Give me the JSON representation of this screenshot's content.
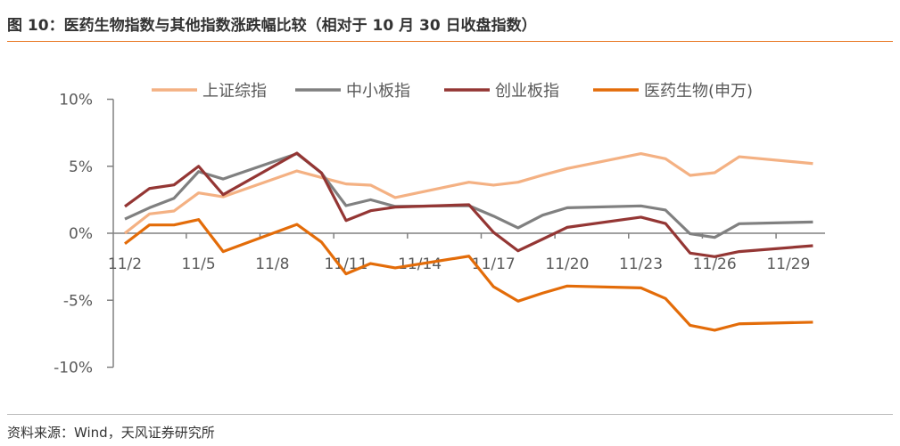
{
  "title": "图 10：医药生物指数与其他指数涨跌幅比较（相对于 10 月 30 日收盘指数）",
  "source": "资料来源：Wind，天风证券研究所",
  "chart_data": {
    "type": "line",
    "title": "医药生物指数与其他指数涨跌幅比较（相对于 10 月 30 日收盘指数）",
    "xlabel": "",
    "ylabel": "",
    "ylim": [
      -10,
      10
    ],
    "yticks": [
      10,
      5,
      0,
      -5,
      -10
    ],
    "ytick_labels": [
      "10%",
      "5%",
      "0%",
      "-5%",
      "-10%"
    ],
    "xtick_labels": [
      "11/2",
      "11/5",
      "11/8",
      "11/11",
      "11/14",
      "11/17",
      "11/20",
      "11/23",
      "11/26",
      "11/29"
    ],
    "xtick_days": [
      2,
      5,
      8,
      11,
      14,
      17,
      20,
      23,
      26,
      29
    ],
    "x_days": [
      2,
      3,
      4,
      5,
      6,
      9,
      10,
      11,
      12,
      13,
      16,
      17,
      18,
      19,
      20,
      23,
      24,
      25,
      26,
      27,
      30
    ],
    "legend_position": "top",
    "grid": false,
    "series": [
      {
        "name": "上证综指",
        "color": "#f4b183",
        "values": [
          0,
          1.44,
          1.66,
          3.01,
          2.72,
          4.65,
          4.16,
          3.68,
          3.59,
          2.66,
          3.81,
          3.59,
          3.81,
          4.34,
          4.83,
          5.94,
          5.56,
          4.32,
          4.52,
          5.71,
          5.2
        ]
      },
      {
        "name": "中小板指",
        "color": "#808080",
        "values": [
          1.06,
          1.9,
          2.61,
          4.6,
          4.05,
          5.94,
          4.5,
          2.06,
          2.5,
          2.0,
          2.06,
          1.28,
          0.4,
          1.35,
          1.9,
          2.04,
          1.73,
          -0.04,
          -0.31,
          0.71,
          0.84
        ]
      },
      {
        "name": "创业板指",
        "color": "#943634",
        "values": [
          2.0,
          3.34,
          3.61,
          5.0,
          2.88,
          5.98,
          4.5,
          0.95,
          1.68,
          1.95,
          2.13,
          0.07,
          -1.31,
          -0.44,
          0.44,
          1.2,
          0.73,
          -1.48,
          -1.75,
          -1.37,
          -0.93
        ]
      },
      {
        "name": "医药生物(申万)",
        "color": "#e36c09",
        "values": [
          -0.78,
          0.62,
          0.62,
          1.02,
          -1.37,
          0.66,
          -0.66,
          -3.03,
          -2.26,
          -2.59,
          -1.71,
          -3.99,
          -5.07,
          -4.47,
          -3.94,
          -4.08,
          -4.87,
          -6.87,
          -7.24,
          -6.76,
          -6.64
        ]
      }
    ]
  }
}
